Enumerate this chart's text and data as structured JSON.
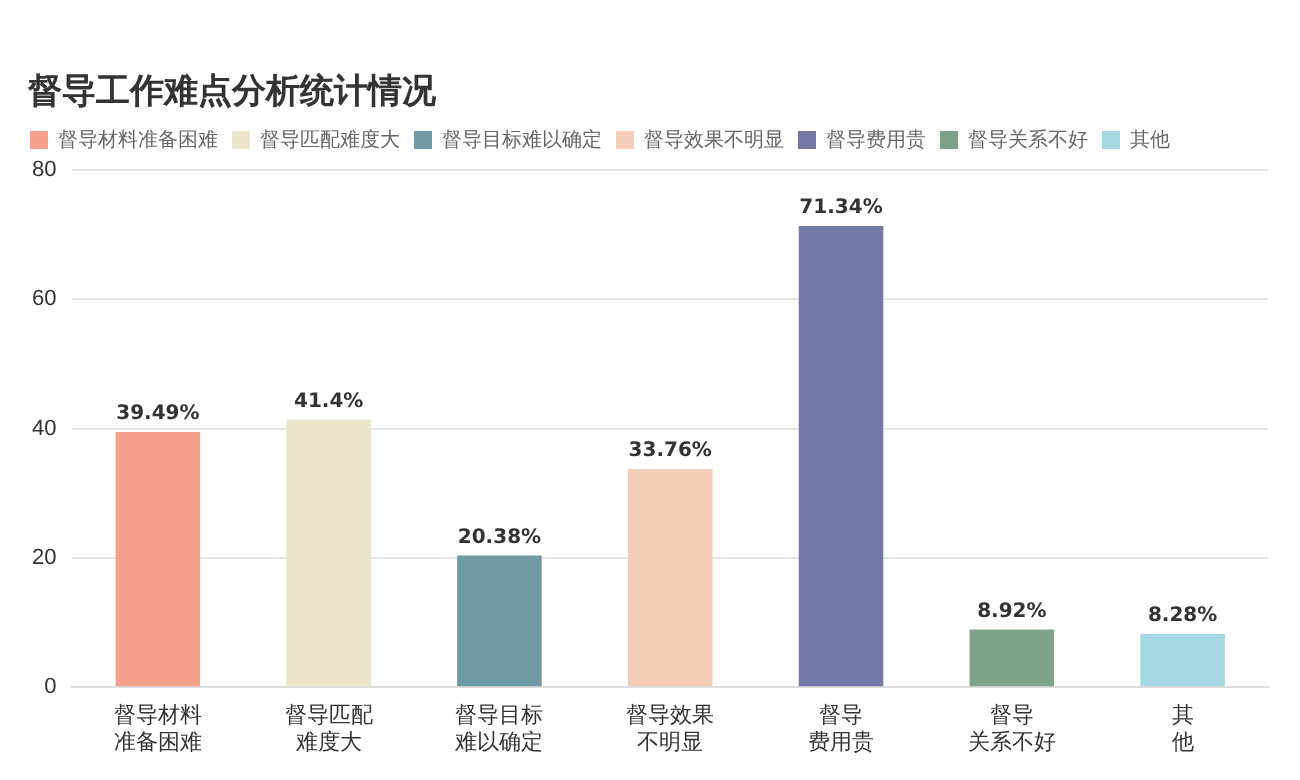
{
  "chart_data": {
    "type": "bar",
    "title": "督导工作难点分析统计情况",
    "categories": [
      "督导材料准备困难",
      "督导匹配难度大",
      "督导目标难以确定",
      "督导效果不明显",
      "督导费用贵",
      "督导关系不好",
      "其他"
    ],
    "series": [
      {
        "name": "督导材料准备困难",
        "color": "#f4a08c",
        "values": [
          39.49,
          null,
          null,
          null,
          null,
          null,
          null
        ],
        "value_labels": [
          "39.49%",
          null,
          null,
          null,
          null,
          null,
          null
        ]
      },
      {
        "name": "督导匹配难度大",
        "color": "#ebe5cc",
        "values": [
          null,
          41.4,
          null,
          null,
          null,
          null,
          null
        ],
        "value_labels": [
          null,
          "41.4%",
          null,
          null,
          null,
          null,
          null
        ]
      },
      {
        "name": "督导目标难以确定",
        "color": "#6f9aa3",
        "values": [
          null,
          null,
          20.38,
          null,
          null,
          null,
          null
        ],
        "value_labels": [
          null,
          null,
          "20.38%",
          null,
          null,
          null,
          null
        ]
      },
      {
        "name": "督导效果不明显",
        "color": "#f3cdb8",
        "values": [
          null,
          null,
          null,
          33.76,
          null,
          null,
          null
        ],
        "value_labels": [
          null,
          null,
          null,
          "33.76%",
          null,
          null,
          null
        ]
      },
      {
        "name": "督导费用贵",
        "color": "#7479a5",
        "values": [
          null,
          null,
          null,
          null,
          71.34,
          null,
          null
        ],
        "value_labels": [
          null,
          null,
          null,
          null,
          "71.34%",
          null,
          null
        ]
      },
      {
        "name": "督导关系不好",
        "color": "#7ea38a",
        "values": [
          null,
          null,
          null,
          null,
          null,
          8.92,
          null
        ],
        "value_labels": [
          null,
          null,
          null,
          null,
          null,
          "8.92%",
          null
        ]
      },
      {
        "name": "其他",
        "color": "#a6d8e3",
        "values": [
          null,
          null,
          null,
          null,
          null,
          null,
          8.28
        ],
        "value_labels": [
          null,
          null,
          null,
          null,
          null,
          null,
          "8.28%"
        ]
      }
    ],
    "ylim": [
      0,
      80
    ],
    "yticks": [
      0,
      20,
      40,
      60,
      80
    ],
    "grid": "y",
    "legend": "top left"
  }
}
